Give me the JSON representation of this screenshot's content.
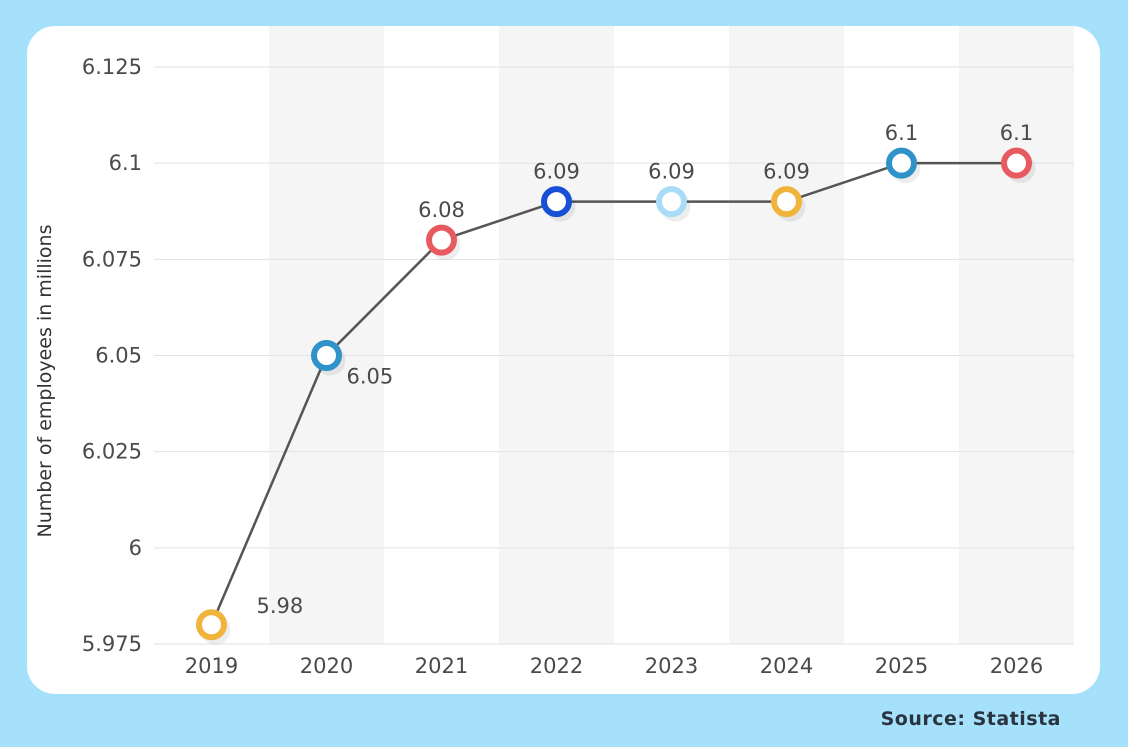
{
  "chart_data": {
    "type": "line",
    "x": [
      "2019",
      "2020",
      "2021",
      "2022",
      "2023",
      "2024",
      "2025",
      "2026"
    ],
    "values": [
      5.98,
      6.05,
      6.08,
      6.09,
      6.09,
      6.09,
      6.1,
      6.1
    ],
    "data_labels": [
      "5.98",
      "6.05",
      "6.08",
      "6.09",
      "6.09",
      "6.09",
      "6.1",
      "6.1"
    ],
    "marker_colors": [
      "#f0b43c",
      "#2f93c9",
      "#e85a5f",
      "#1550d6",
      "#a9dcf6",
      "#f0b43c",
      "#2f93c9",
      "#e85a5f"
    ],
    "line_color": "#555555",
    "ylabel": "Number of employees in millions",
    "xlabel": "",
    "ylim": [
      5.975,
      6.125
    ],
    "yticks": [
      5.975,
      6,
      6.025,
      6.05,
      6.075,
      6.1,
      6.125
    ],
    "ytick_labels": [
      "5.975",
      "6",
      "6.025",
      "6.05",
      "6.075",
      "6.1",
      "6.125"
    ],
    "grid": true,
    "alternating_column_shading": true,
    "legend": "none"
  },
  "footer": {
    "source": "Source: Statista"
  },
  "colors": {
    "background": "#a6e1fb",
    "card": "#ffffff",
    "shade_band": "#f5f5f5",
    "gridline": "#dde3ea"
  }
}
